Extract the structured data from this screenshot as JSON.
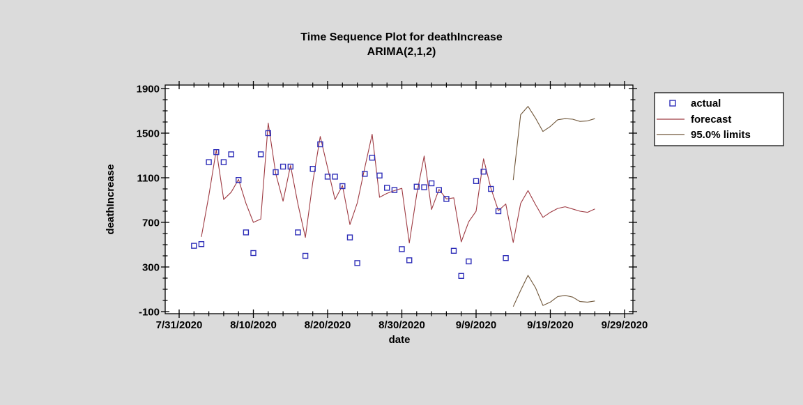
{
  "window": {
    "background_color": "#dbdbdb",
    "plot_background_color": "#ffffff"
  },
  "chart_data": {
    "type": "line",
    "title": "Time Sequence Plot for deathIncrease",
    "subtitle": "ARIMA(2,1,2)",
    "xlabel": "date",
    "ylabel": "deathIncrease",
    "x_axis": {
      "tick_labels": [
        "7/31/2020",
        "8/10/2020",
        "8/20/2020",
        "8/30/2020",
        "9/9/2020",
        "9/19/2020",
        "9/29/2020"
      ],
      "tick_day_offsets": [
        0,
        10,
        20,
        30,
        40,
        50,
        60
      ],
      "minor_tick_step_days": 2,
      "range_day_offsets": [
        0,
        60
      ]
    },
    "y_axis": {
      "tick_labels": [
        "-100",
        "300",
        "700",
        "1100",
        "1500",
        "1900"
      ],
      "ticks": [
        -100,
        300,
        700,
        1100,
        1500,
        1900
      ],
      "minor_tick_step": 100,
      "range": [
        -100,
        1900
      ],
      "grid": "off"
    },
    "legend": {
      "position": "outside-top-right",
      "entries": [
        {
          "label": "actual",
          "marker": "open-square",
          "color": "#2e2eb8"
        },
        {
          "label": "forecast",
          "marker": "line",
          "color": "#9e3a42"
        },
        {
          "label": "95.0% limits",
          "marker": "line",
          "color": "#6f5639"
        }
      ]
    },
    "series": [
      {
        "name": "actual",
        "style": "square-markers",
        "color": "#2e2eb8",
        "start_date": "8/2/2020",
        "start_day_offset": 2,
        "values": [
          490,
          505,
          1240,
          1330,
          1240,
          1310,
          1080,
          610,
          425,
          1310,
          1500,
          1150,
          1200,
          1200,
          610,
          400,
          1180,
          1400,
          1110,
          1110,
          1025,
          565,
          335,
          1135,
          1280,
          1120,
          1010,
          990,
          460,
          360,
          1020,
          1015,
          1050,
          990,
          910,
          445,
          220,
          350,
          1070,
          1155,
          1000,
          800,
          380
        ]
      },
      {
        "name": "forecast",
        "style": "line",
        "color": "#9e3a42",
        "start_date": "8/3/2020",
        "start_day_offset": 3,
        "values": [
          570,
          940,
          1350,
          905,
          970,
          1085,
          870,
          700,
          730,
          1590,
          1140,
          890,
          1210,
          865,
          565,
          1060,
          1470,
          1190,
          905,
          1030,
          680,
          875,
          1190,
          1490,
          925,
          960,
          985,
          1005,
          515,
          950,
          1295,
          815,
          995,
          910,
          920,
          525,
          705,
          800,
          1270,
          1005,
          805,
          865,
          520,
          870,
          985,
          860,
          745,
          790,
          825,
          840,
          820,
          800,
          790,
          820
        ]
      },
      {
        "name": "95.0% limits (upper)",
        "style": "line",
        "color": "#6f5639",
        "start_date": "9/14/2020",
        "start_day_offset": 45,
        "values": [
          1080,
          1665,
          1740,
          1635,
          1515,
          1560,
          1620,
          1630,
          1625,
          1605,
          1610,
          1630
        ]
      },
      {
        "name": "95.0% limits (lower)",
        "style": "line",
        "color": "#6f5639",
        "start_date": "9/14/2020",
        "start_day_offset": 45,
        "values": [
          -55,
          90,
          225,
          115,
          -45,
          -15,
          35,
          45,
          30,
          -10,
          -15,
          -5
        ]
      }
    ]
  }
}
